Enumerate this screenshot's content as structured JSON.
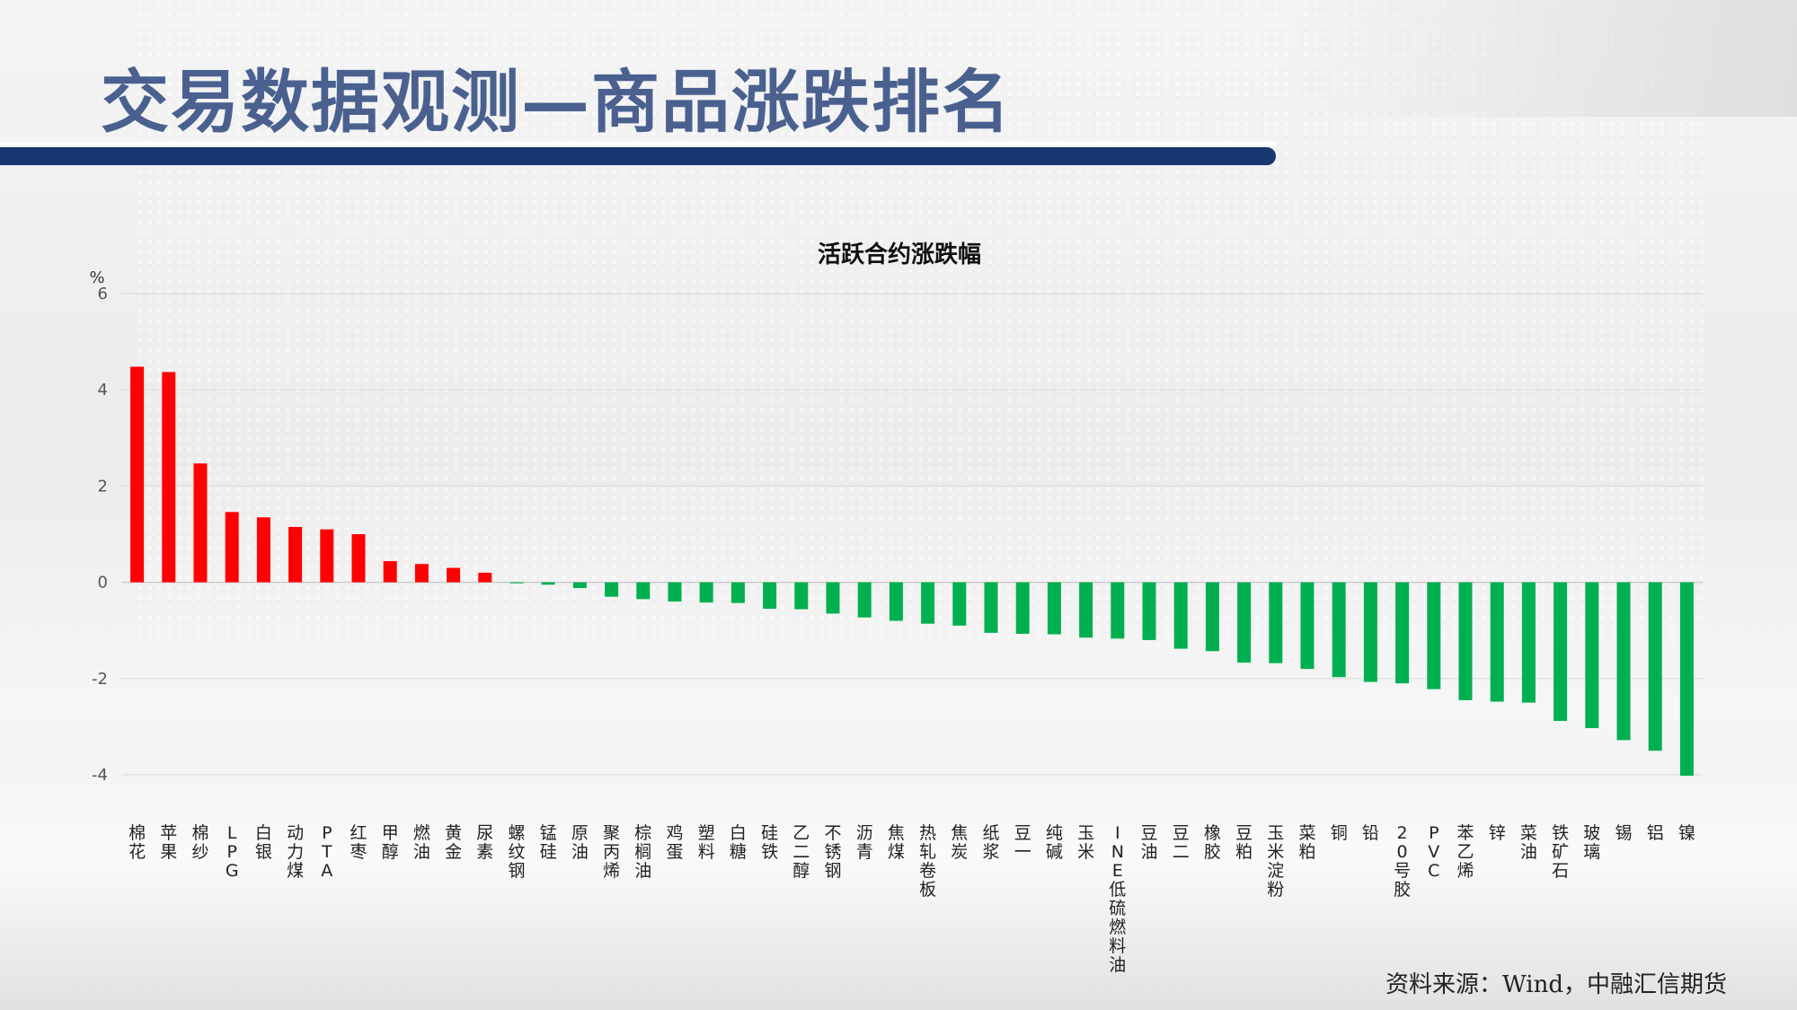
{
  "header": {
    "title": "交易数据观测—商品涨跌排名"
  },
  "source_note": "资料来源：Wind，中融汇信期货",
  "colors": {
    "up": "#ff0000",
    "down": "#00b050",
    "title_blue": "#4a6190",
    "band": "#173770"
  },
  "chart_data": {
    "type": "bar",
    "title": "活跃合约涨跌幅",
    "ylabel": "%",
    "xlabel": "",
    "ylim": [
      -4,
      6
    ],
    "yticks": [
      6,
      4,
      2,
      0,
      -2,
      -4
    ],
    "grid": true,
    "legend": "none",
    "categories": [
      "棉花",
      "苹果",
      "棉纱",
      "LPG",
      "白银",
      "动力煤",
      "PTA",
      "红枣",
      "甲醇",
      "燃油",
      "黄金",
      "尿素",
      "螺纹钢",
      "锰硅",
      "原油",
      "聚丙烯",
      "棕榈油",
      "鸡蛋",
      "塑料",
      "白糖",
      "硅铁",
      "乙二醇",
      "不锈钢",
      "沥青",
      "焦煤",
      "热轧卷板",
      "焦炭",
      "纸浆",
      "豆一",
      "纯碱",
      "玉米",
      "INE低硫燃料油",
      "豆油",
      "豆二",
      "橡胶",
      "豆粕",
      "玉米淀粉",
      "菜粕",
      "铜",
      "铅",
      "20号胶",
      "PVC",
      "苯乙烯",
      "锌",
      "菜油",
      "铁矿石",
      "玻璃",
      "锡",
      "铝",
      "镍"
    ],
    "values": [
      4.48,
      4.37,
      2.47,
      1.46,
      1.35,
      1.15,
      1.1,
      1.0,
      0.44,
      0.38,
      0.3,
      0.2,
      -0.02,
      -0.05,
      -0.12,
      -0.3,
      -0.35,
      -0.4,
      -0.42,
      -0.43,
      -0.55,
      -0.56,
      -0.65,
      -0.73,
      -0.8,
      -0.86,
      -0.9,
      -1.05,
      -1.07,
      -1.08,
      -1.15,
      -1.17,
      -1.2,
      -1.38,
      -1.43,
      -1.67,
      -1.68,
      -1.8,
      -1.97,
      -2.07,
      -2.1,
      -2.22,
      -2.45,
      -2.48,
      -2.5,
      -2.88,
      -3.03,
      -3.28,
      -3.5,
      -4.02
    ]
  }
}
